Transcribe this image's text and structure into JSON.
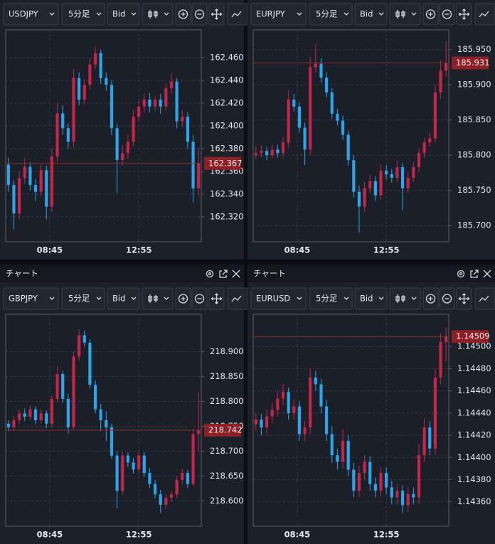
{
  "panels": [
    {
      "symbol": "USDJPY",
      "timeframe": "5分足",
      "price_type": "Bid"
    },
    {
      "symbol": "EURJPY",
      "timeframe": "5分足",
      "price_type": "Bid"
    },
    {
      "header": "チャート",
      "symbol": "GBPJPY",
      "timeframe": "5分足",
      "price_type": "Bid"
    },
    {
      "header": "チャート",
      "symbol": "EURUSD",
      "timeframe": "5分足",
      "price_type": "Bid"
    }
  ],
  "chart_data": [
    {
      "type": "candlestick",
      "up_color": "#c3264a",
      "down_color": "#2ba6ea",
      "grid": true,
      "xlim": [
        -0.5,
        35.5
      ],
      "xticks": [
        {
          "value": 7.6,
          "label": "08:45"
        },
        {
          "value": 24,
          "label": "12:55"
        }
      ],
      "ylim": [
        162.2981,
        162.4844
      ],
      "yticks": [
        {
          "value": 162.32,
          "label": "162.320"
        },
        {
          "value": 162.34,
          "label": "162.340"
        },
        {
          "value": 162.36,
          "label": "162.360"
        },
        {
          "value": 162.38,
          "label": "162.380"
        },
        {
          "value": 162.4,
          "label": "162.400"
        },
        {
          "value": 162.42,
          "label": "162.420"
        },
        {
          "value": 162.44,
          "label": "162.440"
        },
        {
          "value": 162.46,
          "label": "162.460"
        }
      ],
      "current_price": 162.367,
      "open": [
        162.366,
        162.348,
        162.323,
        162.354,
        162.364,
        162.348,
        162.342,
        162.361,
        162.329,
        162.373,
        162.411,
        162.398,
        162.386,
        162.442,
        162.423,
        162.436,
        162.454,
        162.464,
        162.442,
        162.436,
        162.398,
        162.37,
        162.376,
        162.386,
        162.408,
        162.417,
        162.423,
        162.417,
        162.423,
        162.417,
        162.433,
        162.439,
        162.404,
        162.408,
        162.386,
        162.345
      ],
      "high": [
        162.372,
        162.352,
        162.36,
        162.372,
        162.368,
        162.353,
        162.366,
        162.365,
        162.38,
        162.42,
        162.418,
        162.402,
        162.45,
        162.447,
        162.441,
        162.46,
        162.47,
        162.467,
        162.447,
        162.44,
        162.402,
        162.383,
        162.392,
        162.414,
        162.422,
        162.428,
        162.429,
        162.426,
        162.428,
        162.437,
        162.446,
        162.442,
        162.414,
        162.412,
        162.392,
        162.381
      ],
      "low": [
        162.342,
        162.309,
        162.318,
        162.349,
        162.343,
        162.334,
        162.338,
        162.318,
        162.324,
        162.368,
        162.392,
        162.38,
        162.381,
        162.418,
        162.419,
        162.432,
        162.449,
        162.437,
        162.431,
        162.392,
        162.341,
        162.365,
        162.371,
        162.382,
        162.404,
        162.412,
        162.412,
        162.413,
        162.411,
        162.413,
        162.428,
        162.398,
        162.399,
        162.38,
        162.333,
        162.339
      ],
      "close": [
        162.348,
        162.323,
        162.354,
        162.364,
        162.348,
        162.342,
        162.361,
        162.329,
        162.373,
        162.411,
        162.398,
        162.386,
        162.442,
        162.423,
        162.436,
        162.454,
        162.464,
        162.442,
        162.436,
        162.398,
        162.37,
        162.376,
        162.386,
        162.408,
        162.417,
        162.423,
        162.417,
        162.423,
        162.417,
        162.433,
        162.439,
        162.404,
        162.408,
        162.386,
        162.345,
        162.367
      ]
    },
    {
      "type": "candlestick",
      "up_color": "#c3264a",
      "down_color": "#2ba6ea",
      "grid": true,
      "xlim": [
        -0.5,
        35.5
      ],
      "xticks": [
        {
          "value": 7.6,
          "label": "08:45"
        },
        {
          "value": 24,
          "label": "12:55"
        }
      ],
      "ylim": [
        185.677,
        185.978
      ],
      "yticks": [
        {
          "value": 185.7,
          "label": "185.700"
        },
        {
          "value": 185.75,
          "label": "185.750"
        },
        {
          "value": 185.8,
          "label": "185.800"
        },
        {
          "value": 185.85,
          "label": "185.850"
        },
        {
          "value": 185.9,
          "label": "185.900"
        },
        {
          "value": 185.95,
          "label": "185.950"
        }
      ],
      "current_price": 185.931,
      "open": [
        185.8,
        185.803,
        185.806,
        185.8,
        185.808,
        185.803,
        185.818,
        185.879,
        185.869,
        185.839,
        185.808,
        185.925,
        185.93,
        185.91,
        185.889,
        185.859,
        185.849,
        185.829,
        185.793,
        185.748,
        185.727,
        185.753,
        185.763,
        185.743,
        185.778,
        185.773,
        185.768,
        185.783,
        185.753,
        185.768,
        185.783,
        185.803,
        185.818,
        185.824,
        185.889,
        185.92
      ],
      "high": [
        185.812,
        185.814,
        185.812,
        185.816,
        185.815,
        185.826,
        185.893,
        185.887,
        185.875,
        185.846,
        185.94,
        185.958,
        185.938,
        185.918,
        185.895,
        185.866,
        185.856,
        185.835,
        185.8,
        185.757,
        185.762,
        185.772,
        185.77,
        185.787,
        185.786,
        185.78,
        185.792,
        185.789,
        185.776,
        185.79,
        185.81,
        185.825,
        185.832,
        185.9,
        185.935,
        185.962
      ],
      "low": [
        185.794,
        185.797,
        185.793,
        185.795,
        185.797,
        185.797,
        185.811,
        185.862,
        185.832,
        185.786,
        185.8,
        185.918,
        185.903,
        185.882,
        185.852,
        185.842,
        185.822,
        185.785,
        185.74,
        185.69,
        185.72,
        185.746,
        185.735,
        185.737,
        185.766,
        185.761,
        185.762,
        185.722,
        185.746,
        185.762,
        185.776,
        185.796,
        185.812,
        185.818,
        185.88,
        185.912
      ],
      "close": [
        185.803,
        185.806,
        185.8,
        185.808,
        185.803,
        185.818,
        185.879,
        185.869,
        185.839,
        185.808,
        185.925,
        185.93,
        185.91,
        185.889,
        185.859,
        185.849,
        185.829,
        185.793,
        185.748,
        185.727,
        185.753,
        185.763,
        185.743,
        185.778,
        185.773,
        185.768,
        185.783,
        185.753,
        185.768,
        185.783,
        185.803,
        185.818,
        185.824,
        185.889,
        185.92,
        185.931
      ]
    },
    {
      "type": "candlestick",
      "up_color": "#c3264a",
      "down_color": "#2ba6ea",
      "grid": true,
      "xlim": [
        -0.5,
        35.5
      ],
      "xticks": [
        {
          "value": 7.6,
          "label": "08:45"
        },
        {
          "value": 24,
          "label": "12:55"
        }
      ],
      "ylim": [
        218.549,
        218.975
      ],
      "yticks": [
        {
          "value": 218.6,
          "label": "218.600"
        },
        {
          "value": 218.65,
          "label": "218.650"
        },
        {
          "value": 218.7,
          "label": "218.700"
        },
        {
          "value": 218.75,
          "label": "218.750"
        },
        {
          "value": 218.8,
          "label": "218.800"
        },
        {
          "value": 218.85,
          "label": "218.850"
        },
        {
          "value": 218.9,
          "label": "218.900"
        }
      ],
      "current_price": 218.742,
      "open": [
        218.755,
        218.748,
        218.762,
        218.776,
        218.769,
        218.784,
        218.762,
        218.776,
        218.755,
        218.805,
        218.855,
        218.805,
        218.748,
        218.89,
        218.933,
        218.918,
        218.833,
        218.784,
        218.762,
        218.748,
        218.691,
        218.62,
        218.691,
        218.677,
        218.663,
        218.691,
        218.656,
        218.634,
        218.613,
        218.592,
        218.606,
        218.613,
        218.642,
        218.656,
        218.634,
        218.734
      ],
      "high": [
        218.762,
        218.77,
        218.784,
        218.786,
        218.792,
        218.79,
        218.785,
        218.782,
        218.812,
        218.87,
        218.862,
        218.815,
        218.9,
        218.945,
        218.942,
        218.925,
        218.842,
        218.795,
        218.78,
        218.755,
        218.7,
        218.7,
        218.698,
        218.686,
        218.7,
        218.698,
        218.666,
        218.642,
        218.622,
        218.615,
        218.62,
        218.65,
        218.665,
        218.662,
        218.745,
        218.818
      ],
      "low": [
        218.74,
        218.741,
        218.755,
        218.76,
        218.762,
        218.754,
        218.755,
        218.746,
        218.748,
        218.798,
        218.797,
        218.735,
        218.742,
        218.882,
        218.91,
        218.826,
        218.776,
        218.74,
        218.72,
        218.684,
        218.585,
        218.612,
        218.668,
        218.655,
        218.656,
        218.648,
        218.626,
        218.605,
        218.575,
        218.584,
        218.598,
        218.606,
        218.634,
        218.626,
        218.63,
        218.7
      ],
      "close": [
        218.748,
        218.762,
        218.776,
        218.769,
        218.784,
        218.762,
        218.776,
        218.755,
        218.805,
        218.855,
        218.805,
        218.748,
        218.89,
        218.933,
        218.918,
        218.833,
        218.784,
        218.762,
        218.748,
        218.691,
        218.62,
        218.691,
        218.677,
        218.663,
        218.691,
        218.656,
        218.634,
        218.613,
        218.592,
        218.606,
        218.613,
        218.642,
        218.656,
        218.634,
        218.734,
        218.742
      ]
    },
    {
      "type": "candlestick",
      "up_color": "#c3264a",
      "down_color": "#2ba6ea",
      "grid": true,
      "xlim": [
        -0.5,
        35.5
      ],
      "xticks": [
        {
          "value": 7.6,
          "label": "08:45"
        },
        {
          "value": 24,
          "label": "12:55"
        }
      ],
      "ylim": [
        1.14338,
        1.14529
      ],
      "yticks": [
        {
          "value": 1.1436,
          "label": "1.14360"
        },
        {
          "value": 1.1438,
          "label": "1.14380"
        },
        {
          "value": 1.144,
          "label": "1.14400"
        },
        {
          "value": 1.1442,
          "label": "1.14420"
        },
        {
          "value": 1.1444,
          "label": "1.14440"
        },
        {
          "value": 1.1446,
          "label": "1.14460"
        },
        {
          "value": 1.1448,
          "label": "1.14480"
        },
        {
          "value": 1.145,
          "label": "1.14500"
        }
      ],
      "current_price": 1.14509,
      "open": [
        1.1443,
        1.14434,
        1.14427,
        1.14437,
        1.14443,
        1.14453,
        1.14459,
        1.1444,
        1.14446,
        1.14421,
        1.14427,
        1.14472,
        1.14466,
        1.14446,
        1.14421,
        1.14402,
        1.14396,
        1.14415,
        1.14389,
        1.1437,
        1.14386,
        1.14396,
        1.14376,
        1.1437,
        1.14386,
        1.14373,
        1.14364,
        1.1437,
        1.14357,
        1.14367,
        1.14364,
        1.14402,
        1.14427,
        1.14408,
        1.14472,
        1.14504
      ],
      "high": [
        1.1444,
        1.14439,
        1.14443,
        1.14449,
        1.1446,
        1.14466,
        1.14463,
        1.14452,
        1.14451,
        1.14433,
        1.1448,
        1.14478,
        1.14471,
        1.14452,
        1.14428,
        1.14408,
        1.14425,
        1.1442,
        1.14395,
        1.14393,
        1.14402,
        1.14401,
        1.14382,
        1.14392,
        1.14391,
        1.14379,
        1.14376,
        1.14375,
        1.14373,
        1.14373,
        1.14412,
        1.14435,
        1.14433,
        1.1448,
        1.14512,
        1.14517
      ],
      "low": [
        1.14424,
        1.1442,
        1.14421,
        1.14431,
        1.14437,
        1.14447,
        1.14434,
        1.14434,
        1.14415,
        1.14415,
        1.14421,
        1.1446,
        1.1444,
        1.14415,
        1.14395,
        1.14389,
        1.1439,
        1.14383,
        1.14364,
        1.14364,
        1.1438,
        1.1437,
        1.14364,
        1.14365,
        1.14367,
        1.14358,
        1.14358,
        1.1435,
        1.14351,
        1.14358,
        1.14358,
        1.14396,
        1.14402,
        1.14402,
        1.14466,
        1.14487
      ],
      "close": [
        1.14434,
        1.14427,
        1.14437,
        1.14443,
        1.14453,
        1.14459,
        1.1444,
        1.14446,
        1.14421,
        1.14427,
        1.14472,
        1.14466,
        1.14446,
        1.14421,
        1.14402,
        1.14396,
        1.14415,
        1.14389,
        1.1437,
        1.14386,
        1.14396,
        1.14376,
        1.1437,
        1.14386,
        1.14373,
        1.14364,
        1.1437,
        1.14357,
        1.14367,
        1.14364,
        1.14402,
        1.14427,
        1.14408,
        1.14472,
        1.14504,
        1.14509
      ]
    }
  ]
}
